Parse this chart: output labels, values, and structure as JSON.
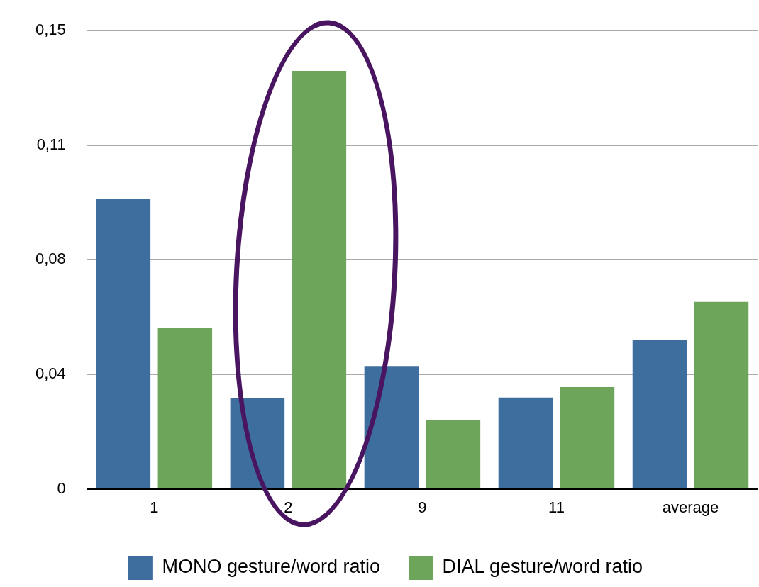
{
  "chart_data": {
    "type": "bar",
    "categories": [
      "1",
      "2",
      "9",
      "11",
      "average"
    ],
    "series": [
      {
        "name": "MONO gesture/word ratio",
        "color": "#3d6e9e",
        "values": [
          0.095,
          0.0297,
          0.0402,
          0.0299,
          0.0488
        ]
      },
      {
        "name": "DIAL gesture/word ratio",
        "color": "#6da55a",
        "values": [
          0.0526,
          0.1368,
          0.0225,
          0.0333,
          0.0612
        ]
      }
    ],
    "ylim": [
      0,
      0.15
    ],
    "yticks": [
      0,
      {
        "value": 0.0375,
        "label": "0,04"
      },
      {
        "value": 0.075,
        "label": "0,08"
      },
      {
        "value": 0.1125,
        "label": "0,11"
      },
      {
        "value": 0.15,
        "label": "0,15"
      }
    ],
    "grid": "y",
    "legend": "bottom"
  }
}
